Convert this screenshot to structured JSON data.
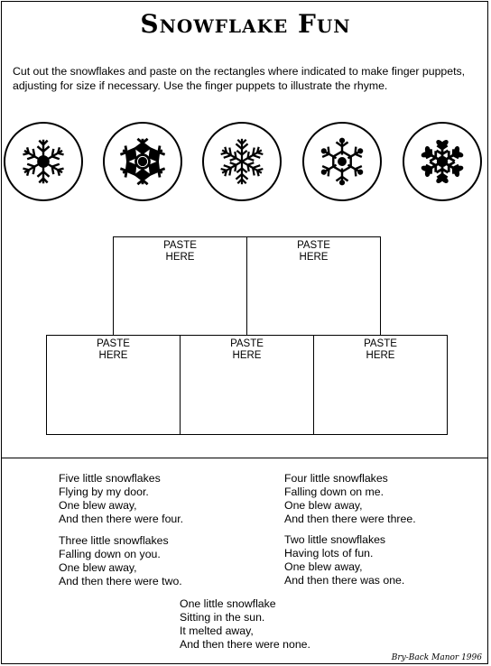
{
  "title": "Snowflake Fun",
  "instructions": "Cut out the snowflakes and paste on the rectangles where indicated to make finger puppets, adjusting for size if necessary.  Use the finger puppets to illustrate the rhyme.",
  "snowflake_icons": [
    "snowflake-1-icon",
    "snowflake-2-icon",
    "snowflake-3-icon",
    "snowflake-4-icon",
    "snowflake-5-icon"
  ],
  "paste_label": {
    "line1": "PASTE",
    "line2": "HERE"
  },
  "rhyme": {
    "stanza1": [
      "Five little snowflakes",
      "Flying by my door.",
      "One blew away,",
      "And then there were four."
    ],
    "stanza2": [
      "Four little snowflakes",
      "Falling down on me.",
      "One blew away,",
      "And then there were three."
    ],
    "stanza3": [
      "Three little snowflakes",
      "Falling down on you.",
      "One blew away,",
      "And then there were two."
    ],
    "stanza4": [
      "Two little snowflakes",
      "Having lots of fun.",
      "One blew away,",
      "And then there was one."
    ],
    "stanza5": [
      "One little snowflake",
      "Sitting in the sun.",
      "It melted away,",
      "And then there were none."
    ]
  },
  "credit": "Bry-Back Manor 1996"
}
